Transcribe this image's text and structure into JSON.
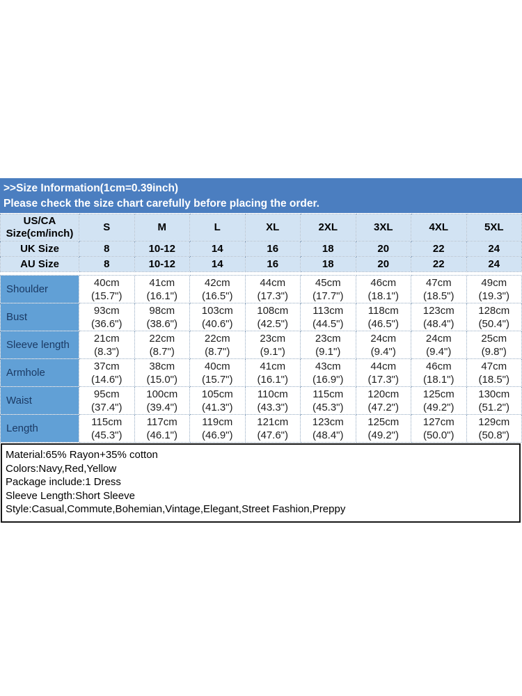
{
  "banner": {
    "title": ">>Size Information(1cm=0.39inch)",
    "subtitle": "Please check the size chart carefully before placing the order."
  },
  "size_table": {
    "corner_header_line1": "US/CA",
    "corner_header_line2": "Size(cm/inch)",
    "size_columns": [
      "S",
      "M",
      "L",
      "XL",
      "2XL",
      "3XL",
      "4XL",
      "5XL"
    ],
    "size_rows": [
      {
        "label": "UK Size",
        "values": [
          "8",
          "10-12",
          "14",
          "16",
          "18",
          "20",
          "22",
          "24"
        ]
      },
      {
        "label": "AU Size",
        "values": [
          "8",
          "10-12",
          "14",
          "16",
          "18",
          "20",
          "22",
          "24"
        ]
      }
    ],
    "measurement_rows": [
      {
        "label": "Shoulder",
        "cm": [
          "40cm",
          "41cm",
          "42cm",
          "44cm",
          "45cm",
          "46cm",
          "47cm",
          "49cm"
        ],
        "inch": [
          "(15.7\")",
          "(16.1\")",
          "(16.5\")",
          "(17.3\")",
          "(17.7\")",
          "(18.1\")",
          "(18.5\")",
          "(19.3\")"
        ]
      },
      {
        "label": "Bust",
        "cm": [
          "93cm",
          "98cm",
          "103cm",
          "108cm",
          "113cm",
          "118cm",
          "123cm",
          "128cm"
        ],
        "inch": [
          "(36.6\")",
          "(38.6\")",
          "(40.6\")",
          "(42.5\")",
          "(44.5\")",
          "(46.5\")",
          "(48.4\")",
          "(50.4\")"
        ]
      },
      {
        "label": "Sleeve length",
        "cm": [
          "21cm",
          "22cm",
          "22cm",
          "23cm",
          "23cm",
          "24cm",
          "24cm",
          "25cm"
        ],
        "inch": [
          "(8.3\")",
          "(8.7\")",
          "(8.7\")",
          "(9.1\")",
          "(9.1\")",
          "(9.4\")",
          "(9.4\")",
          "(9.8\")"
        ]
      },
      {
        "label": "Armhole",
        "cm": [
          "37cm",
          "38cm",
          "40cm",
          "41cm",
          "43cm",
          "44cm",
          "46cm",
          "47cm"
        ],
        "inch": [
          "(14.6\")",
          "(15.0\")",
          "(15.7\")",
          "(16.1\")",
          "(16.9\")",
          "(17.3\")",
          "(18.1\")",
          "(18.5\")"
        ]
      },
      {
        "label": "Waist",
        "cm": [
          "95cm",
          "100cm",
          "105cm",
          "110cm",
          "115cm",
          "120cm",
          "125cm",
          "130cm"
        ],
        "inch": [
          "(37.4\")",
          "(39.4\")",
          "(41.3\")",
          "(43.3\")",
          "(45.3\")",
          "(47.2\")",
          "(49.2\")",
          "(51.2\")"
        ]
      },
      {
        "label": "Length",
        "cm": [
          "115cm",
          "117cm",
          "119cm",
          "121cm",
          "123cm",
          "125cm",
          "127cm",
          "129cm"
        ],
        "inch": [
          "(45.3\")",
          "(46.1\")",
          "(46.9\")",
          "(47.6\")",
          "(48.4\")",
          "(49.2\")",
          "(50.0\")",
          "(50.8\")"
        ]
      }
    ]
  },
  "details_box": {
    "lines": [
      "Material:65% Rayon+35% cotton",
      "Colors:Navy,Red,Yellow",
      "Package include:1 Dress",
      "Sleeve Length:Short Sleeve",
      "Style:Casual,Commute,Bohemian,Vintage,Elegant,Street Fashion,Preppy"
    ]
  },
  "colors": {
    "banner_bg": "#4b7ec0",
    "header_bg": "#d2e3f3",
    "label_col_bg": "#61a0d6",
    "label_text": "#1b3a64"
  }
}
